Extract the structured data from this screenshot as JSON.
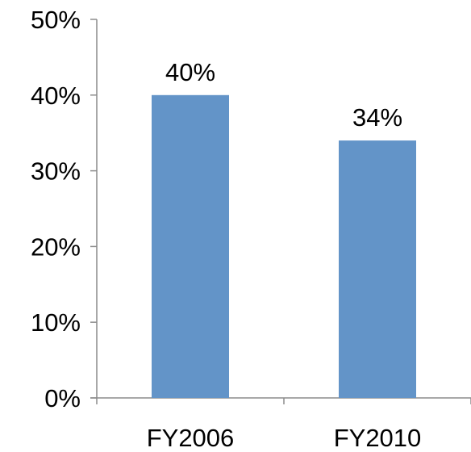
{
  "chart_data": {
    "type": "bar",
    "categories": [
      "FY2006",
      "FY2010"
    ],
    "values": [
      40,
      34
    ],
    "data_labels": [
      "40%",
      "34%"
    ],
    "y_tick_labels": [
      "0%",
      "10%",
      "20%",
      "30%",
      "40%",
      "50%"
    ],
    "y_ticks": [
      0,
      10,
      20,
      30,
      40,
      50
    ],
    "ylim": [
      0,
      50
    ],
    "grid": false,
    "legend": "none",
    "bar_color": "#6394C8",
    "axis_color": "#8C8C8C"
  }
}
